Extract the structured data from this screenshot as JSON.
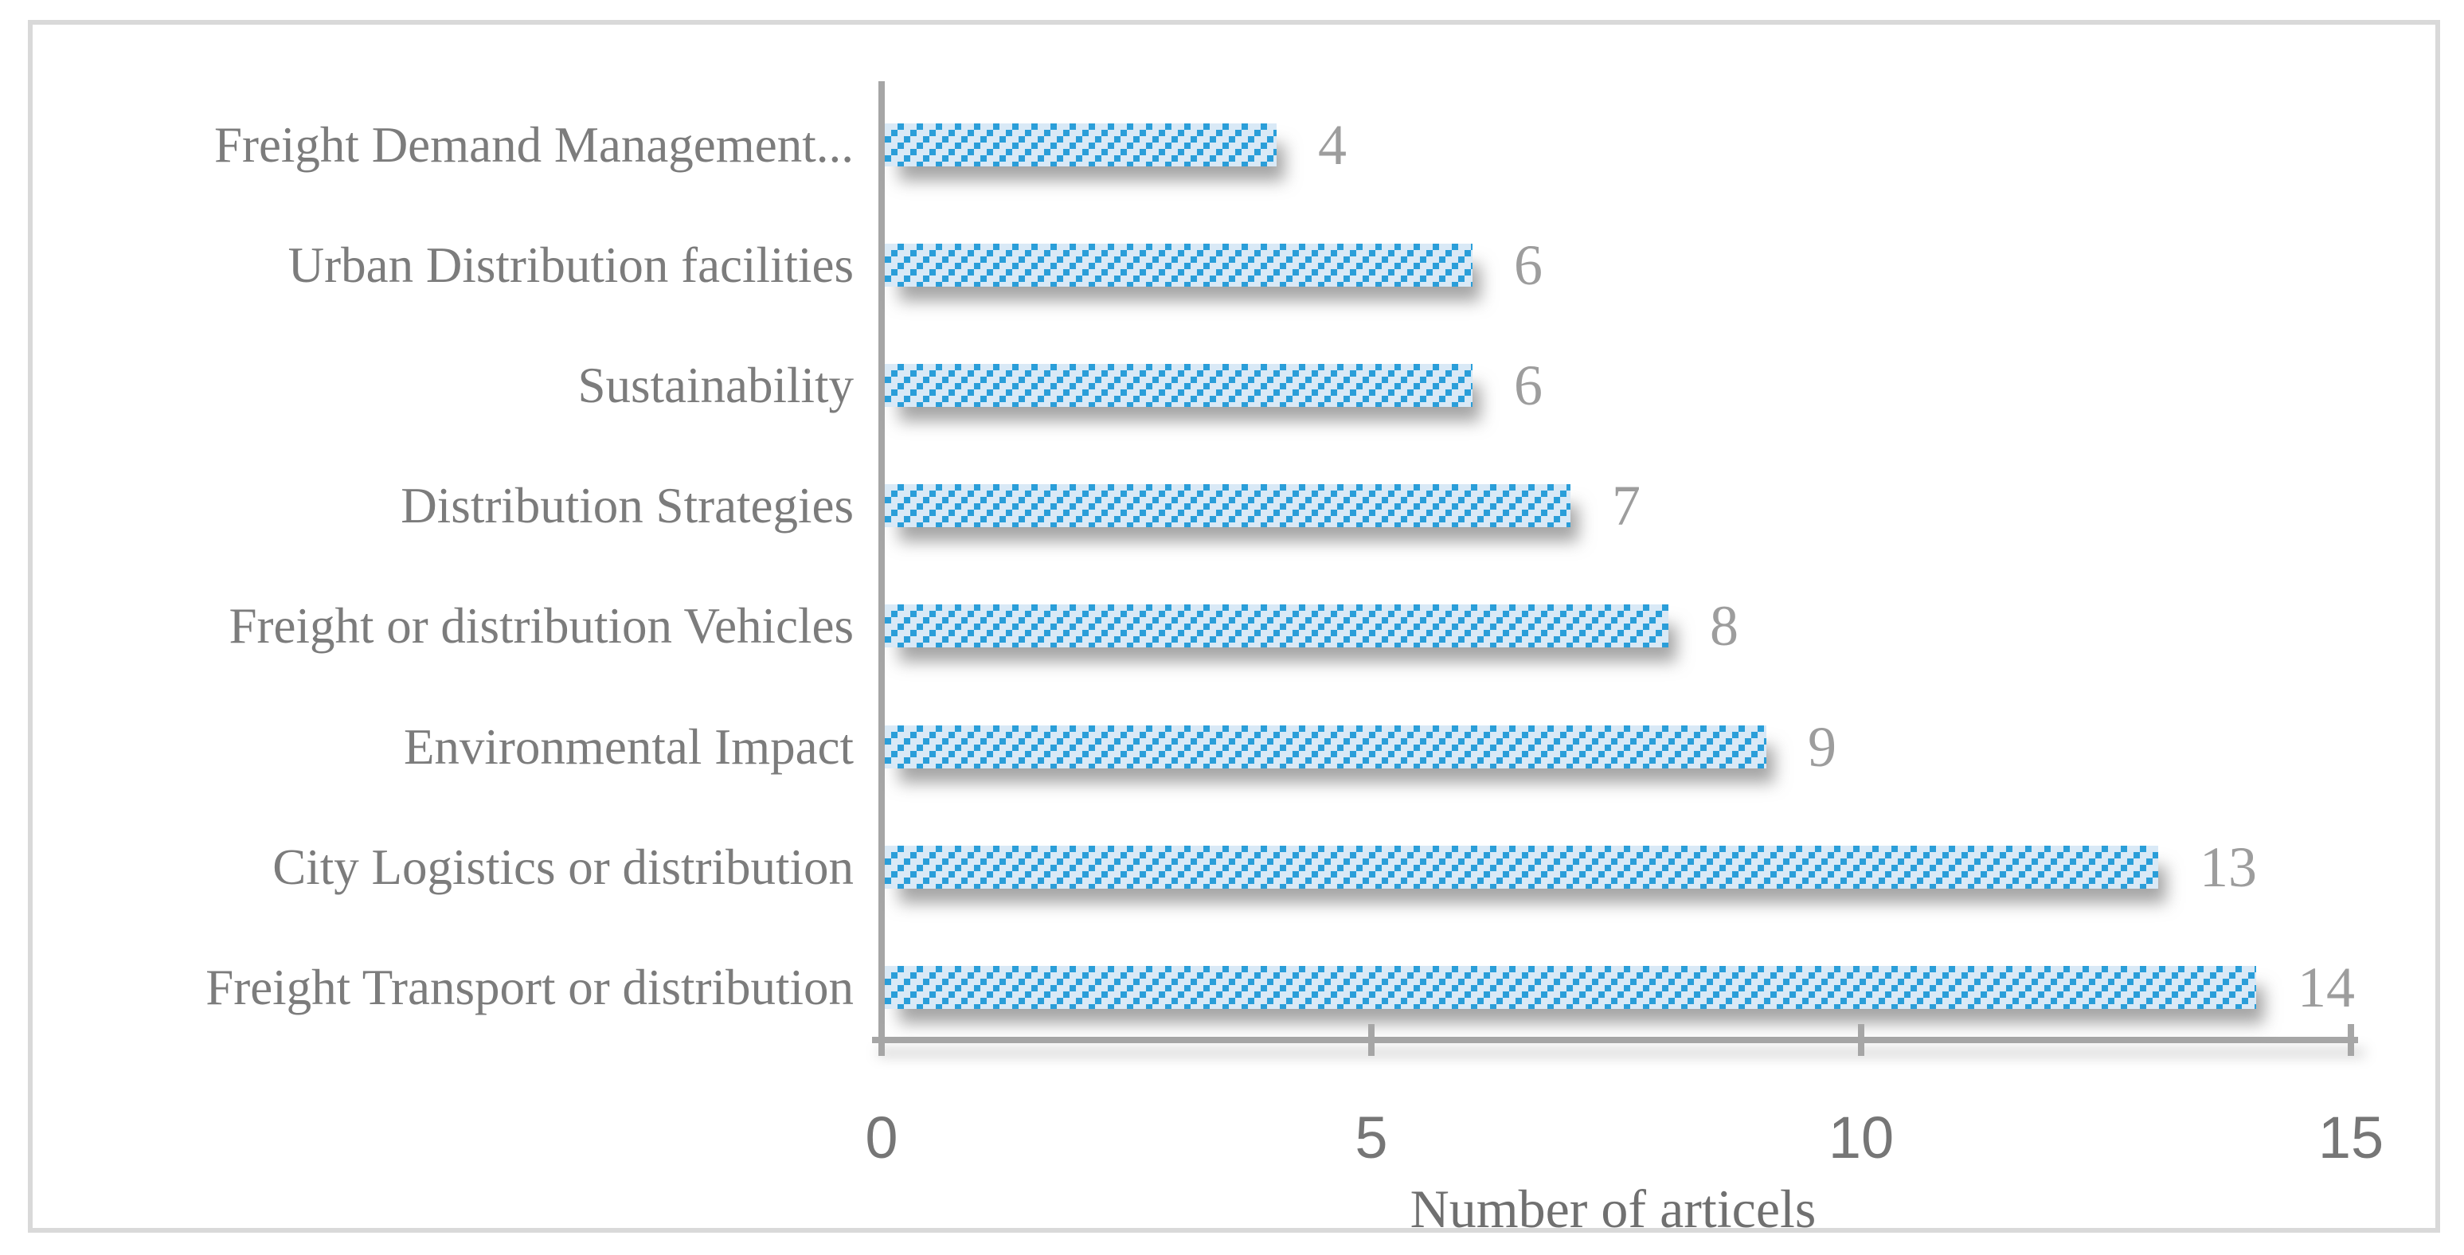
{
  "figure": {
    "background": "#ffffff",
    "border_color": "#d9d9d9"
  },
  "chart_data": {
    "type": "bar",
    "orientation": "horizontal",
    "title": "",
    "xlabel": "Number of articels",
    "ylabel": "",
    "categories": [
      "Freight Demand Management...",
      "Urban Distribution facilities",
      "Sustainability",
      "Distribution Strategies",
      "Freight or distribution Vehicles",
      "Environmental Impact",
      "City Logistics or distribution",
      "Freight Transport or distribution"
    ],
    "values": [
      4,
      6,
      6,
      7,
      8,
      9,
      13,
      14
    ],
    "x_ticks": [
      0,
      5,
      10,
      15
    ],
    "xlim": [
      0,
      15
    ],
    "grid": false,
    "legend": false,
    "bar_fill_color": "#d9e9f6",
    "bar_hatch_color": "#2a9ed9",
    "axis_color": "#a6a6a6",
    "category_label_color": "#7c7c7c",
    "value_label_color": "#9d9d9d",
    "tick_label_color": "#767676",
    "axis_title_color": "#707070"
  }
}
